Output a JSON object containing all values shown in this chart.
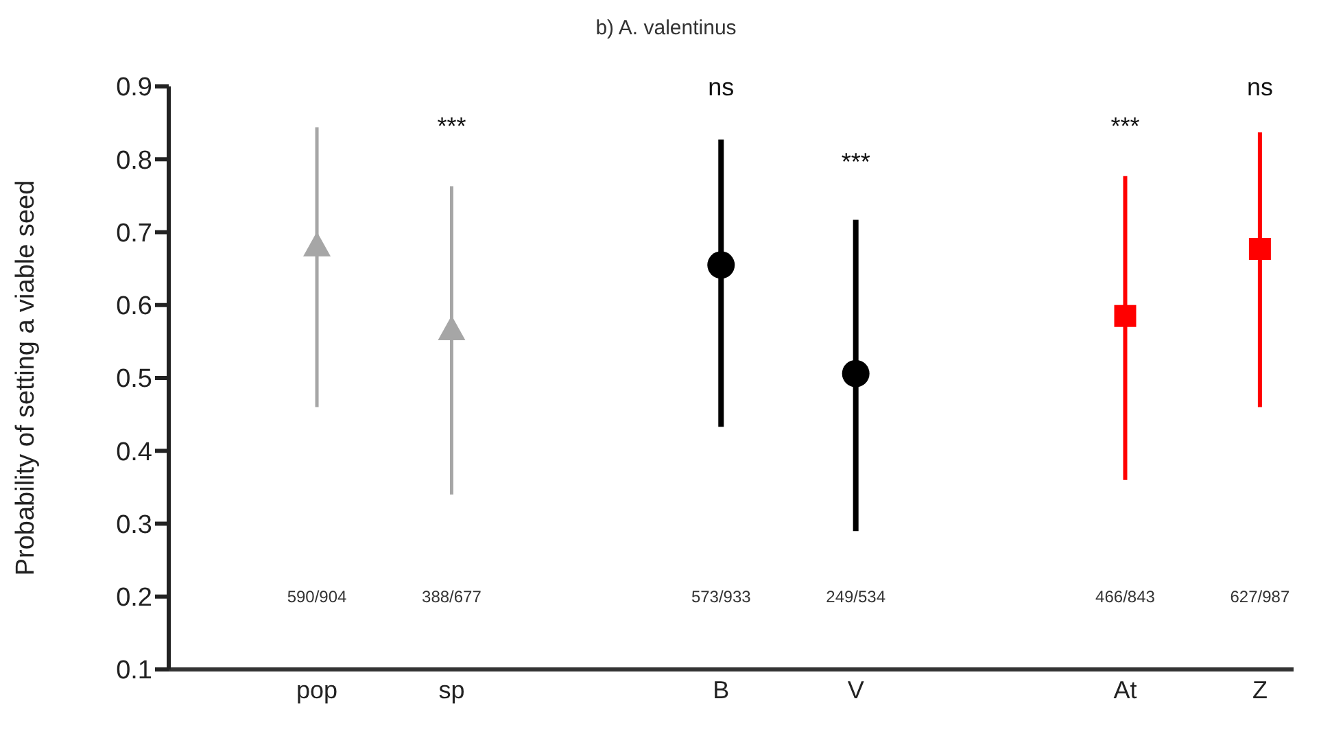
{
  "chart_data": {
    "type": "scatter",
    "title": "b) A. valentinus",
    "ylabel": "Probability of setting a viable seed",
    "categories": [
      "pop",
      "sp",
      null,
      "B",
      "V",
      null,
      "At",
      "Z"
    ],
    "series": [
      {
        "color": "#a6a6a6",
        "marker": "triangle",
        "values": [
          0.68,
          0.565,
          null,
          null,
          null,
          null,
          null,
          null
        ],
        "errors": [
          [
            0.46,
            0.844
          ],
          [
            0.34,
            0.763
          ],
          null,
          null,
          null,
          null,
          null,
          null
        ]
      },
      {
        "color": "#000000",
        "marker": "circle",
        "values": [
          null,
          null,
          null,
          0.655,
          0.506,
          null,
          null,
          null
        ],
        "errors": [
          null,
          null,
          null,
          [
            0.433,
            0.827
          ],
          [
            0.29,
            0.717
          ],
          null,
          null,
          null
        ]
      },
      {
        "color": "#ff0000",
        "marker": "square",
        "values": [
          null,
          null,
          null,
          null,
          null,
          null,
          0.585,
          0.677
        ],
        "errors": [
          null,
          null,
          null,
          null,
          null,
          null,
          [
            0.36,
            0.777
          ],
          [
            0.46,
            0.837
          ]
        ]
      }
    ],
    "ylim": [
      0.1,
      0.9
    ],
    "yticks": [
      0.1,
      0.2,
      0.3,
      0.4,
      0.5,
      0.6,
      0.7,
      0.8,
      0.9
    ],
    "grid": false,
    "legend": false,
    "annotations": [
      "***",
      "ns",
      "***",
      "***",
      "ns",
      "590/904",
      "388/677",
      "573/933",
      "249/534",
      "466/843",
      "627/987"
    ]
  }
}
